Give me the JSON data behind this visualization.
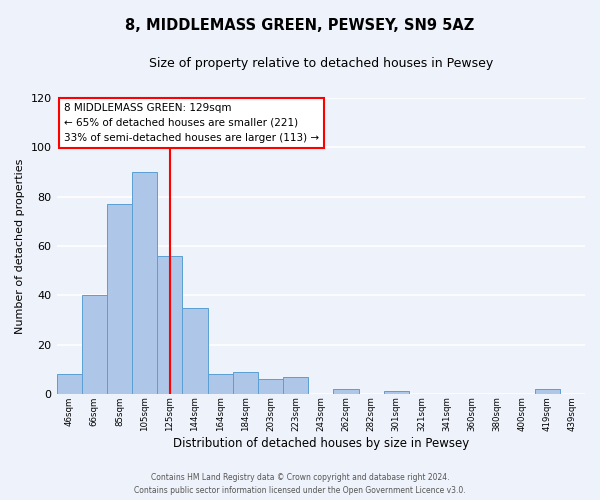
{
  "title": "8, MIDDLEMASS GREEN, PEWSEY, SN9 5AZ",
  "subtitle": "Size of property relative to detached houses in Pewsey",
  "xlabel": "Distribution of detached houses by size in Pewsey",
  "ylabel": "Number of detached properties",
  "bin_labels": [
    "46sqm",
    "66sqm",
    "85sqm",
    "105sqm",
    "125sqm",
    "144sqm",
    "164sqm",
    "184sqm",
    "203sqm",
    "223sqm",
    "243sqm",
    "262sqm",
    "282sqm",
    "301sqm",
    "321sqm",
    "341sqm",
    "360sqm",
    "380sqm",
    "400sqm",
    "419sqm",
    "439sqm"
  ],
  "bar_heights": [
    8,
    40,
    77,
    90,
    56,
    35,
    8,
    9,
    6,
    7,
    0,
    2,
    0,
    1,
    0,
    0,
    0,
    0,
    0,
    2,
    0
  ],
  "bar_color": "#aec6e8",
  "bar_edge_color": "#5a9fd4",
  "ylim": [
    0,
    120
  ],
  "yticks": [
    0,
    20,
    40,
    60,
    80,
    100,
    120
  ],
  "vline_x": 4.5,
  "vline_color": "red",
  "annotation_title": "8 MIDDLEMASS GREEN: 129sqm",
  "annotation_line1": "← 65% of detached houses are smaller (221)",
  "annotation_line2": "33% of semi-detached houses are larger (113) →",
  "annotation_box_color": "white",
  "annotation_box_edge_color": "red",
  "footer1": "Contains HM Land Registry data © Crown copyright and database right 2024.",
  "footer2": "Contains public sector information licensed under the Open Government Licence v3.0.",
  "background_color": "#eef2fa",
  "grid_color": "white"
}
